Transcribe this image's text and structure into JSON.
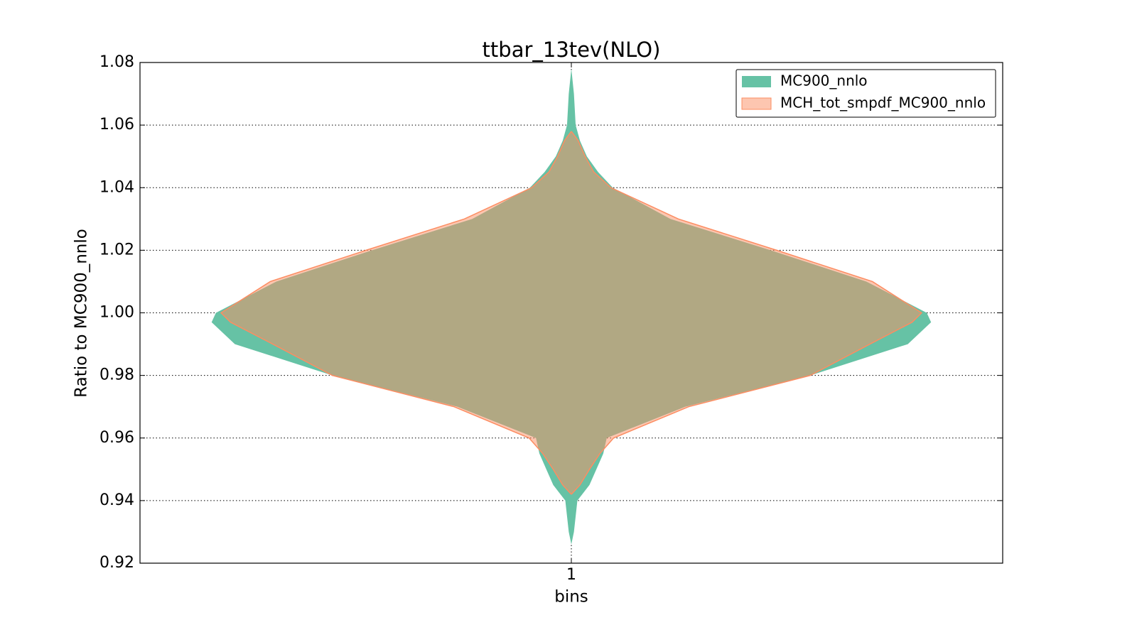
{
  "chart_data": {
    "type": "violin",
    "title": "ttbar_13tev(NLO)",
    "xlabel": "bins",
    "ylabel": "Ratio to MC900_nnlo",
    "xlim": [
      0.5,
      1.5
    ],
    "xticks": [
      1
    ],
    "ylim": [
      0.92,
      1.08
    ],
    "yticks": [
      0.92,
      0.94,
      0.96,
      0.98,
      {
        "value": 1,
        "label": "1.00"
      },
      1.02,
      1.04,
      1.06,
      1.08
    ],
    "grid": true,
    "legend": "upper right",
    "series": [
      {
        "name": "MC900_nnlo",
        "color": "#66c2a5",
        "alpha": 1,
        "values": [
          1.078,
          1.07,
          1.06,
          1.055,
          1.05,
          1.045,
          1.04,
          1.03,
          1.02,
          1.01,
          1.0,
          0.997,
          0.99,
          0.98,
          0.97,
          0.96,
          0.955,
          0.95,
          0.945,
          0.94,
          0.93,
          0.926
        ],
        "half_widths": [
          0,
          0.003,
          0.005,
          0.01,
          0.018,
          0.031,
          0.048,
          0.115,
          0.231,
          0.342,
          0.412,
          0.417,
          0.39,
          0.277,
          0.132,
          0.041,
          0.037,
          0.029,
          0.021,
          0.007,
          0.003,
          0
        ]
      },
      {
        "name": "MCH_tot_smpdf_MC900_nnlo",
        "color": "#fc8d62",
        "alpha": 0.5,
        "values": [
          1.058,
          1.055,
          1.05,
          1.045,
          1.04,
          1.03,
          1.02,
          1.01,
          1.0,
          0.997,
          0.99,
          0.98,
          0.97,
          0.96,
          0.955,
          0.95,
          0.945,
          0.942
        ],
        "half_widths": [
          0,
          0.008,
          0.016,
          0.026,
          0.046,
          0.124,
          0.238,
          0.349,
          0.406,
          0.395,
          0.346,
          0.277,
          0.136,
          0.049,
          0.033,
          0.021,
          0.01,
          0
        ]
      }
    ]
  }
}
